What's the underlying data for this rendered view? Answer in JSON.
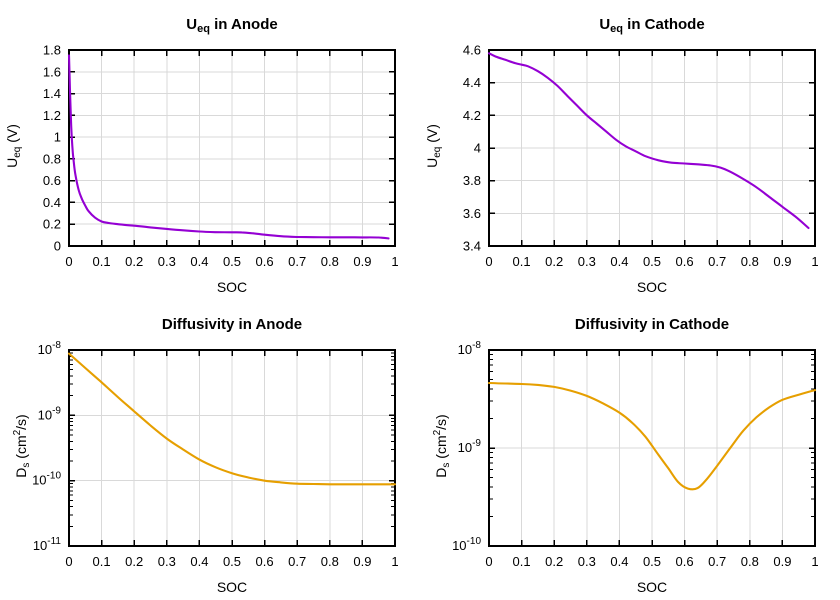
{
  "figure": {
    "background": "#ffffff",
    "grid_color": "#d9d9d9",
    "axis_color": "#000000",
    "rows": 2,
    "cols": 2
  },
  "chart_data": [
    {
      "name": "ueq-anode",
      "type": "line",
      "title": "U_eq in Anode",
      "title_segments": [
        [
          "U",
          ""
        ],
        [
          "eq",
          "sub"
        ],
        [
          " in Anode",
          ""
        ]
      ],
      "xlabel": "SOC",
      "ylabel": "U_eq (V)",
      "ylabel_segments": [
        [
          "U",
          ""
        ],
        [
          "eq",
          "sub"
        ],
        [
          " (V)",
          ""
        ]
      ],
      "line_color": "#9400d3",
      "y_scale": "linear",
      "xlim": [
        0,
        1
      ],
      "ylim": [
        0,
        1.8
      ],
      "x_ticks": [
        0,
        0.1,
        0.2,
        0.3,
        0.4,
        0.5,
        0.6,
        0.7,
        0.8,
        0.9,
        1
      ],
      "x_tick_labels": [
        "0",
        "0.1",
        "0.2",
        "0.3",
        "0.4",
        "0.5",
        "0.6",
        "0.7",
        "0.8",
        "0.9",
        "1"
      ],
      "y_ticks": [
        0,
        0.2,
        0.4,
        0.6,
        0.8,
        1,
        1.2,
        1.4,
        1.6,
        1.8
      ],
      "y_tick_labels": [
        "0",
        "0.2",
        "0.4",
        "0.6",
        "0.8",
        "1",
        "1.2",
        "1.4",
        "1.6",
        "1.8"
      ],
      "x": [
        0,
        0.003,
        0.006,
        0.01,
        0.015,
        0.02,
        0.03,
        0.04,
        0.05,
        0.06,
        0.08,
        0.1,
        0.12,
        0.15,
        0.18,
        0.2,
        0.25,
        0.3,
        0.35,
        0.4,
        0.45,
        0.5,
        0.53,
        0.56,
        0.6,
        0.65,
        0.7,
        0.75,
        0.8,
        0.85,
        0.9,
        0.95,
        0.98
      ],
      "y": [
        1.75,
        1.42,
        1.15,
        0.92,
        0.76,
        0.65,
        0.51,
        0.43,
        0.37,
        0.32,
        0.26,
        0.225,
        0.212,
        0.2,
        0.191,
        0.186,
        0.171,
        0.157,
        0.144,
        0.133,
        0.127,
        0.126,
        0.125,
        0.118,
        0.104,
        0.09,
        0.083,
        0.081,
        0.08,
        0.08,
        0.079,
        0.078,
        0.07
      ]
    },
    {
      "name": "ueq-cathode",
      "type": "line",
      "title": "U_eq in Cathode",
      "title_segments": [
        [
          "U",
          ""
        ],
        [
          "eq",
          "sub"
        ],
        [
          " in Cathode",
          ""
        ]
      ],
      "xlabel": "SOC",
      "ylabel": "U_eq (V)",
      "ylabel_segments": [
        [
          "U",
          ""
        ],
        [
          "eq",
          "sub"
        ],
        [
          " (V)",
          ""
        ]
      ],
      "line_color": "#9400d3",
      "y_scale": "linear",
      "xlim": [
        0,
        1
      ],
      "ylim": [
        3.4,
        4.6
      ],
      "x_ticks": [
        0,
        0.1,
        0.2,
        0.3,
        0.4,
        0.5,
        0.6,
        0.7,
        0.8,
        0.9,
        1
      ],
      "x_tick_labels": [
        "0",
        "0.1",
        "0.2",
        "0.3",
        "0.4",
        "0.5",
        "0.6",
        "0.7",
        "0.8",
        "0.9",
        "1"
      ],
      "y_ticks": [
        3.4,
        3.6,
        3.8,
        4,
        4.2,
        4.4,
        4.6
      ],
      "y_tick_labels": [
        "3.4",
        "3.6",
        "3.8",
        "4",
        "4.2",
        "4.4",
        "4.6"
      ],
      "x": [
        0,
        0.02,
        0.05,
        0.08,
        0.1,
        0.12,
        0.15,
        0.18,
        0.21,
        0.24,
        0.27,
        0.3,
        0.33,
        0.36,
        0.39,
        0.42,
        0.45,
        0.48,
        0.52,
        0.56,
        0.6,
        0.64,
        0.68,
        0.71,
        0.74,
        0.78,
        0.82,
        0.86,
        0.9,
        0.94,
        0.98
      ],
      "y": [
        4.58,
        4.56,
        4.54,
        4.52,
        4.51,
        4.5,
        4.47,
        4.43,
        4.38,
        4.32,
        4.26,
        4.2,
        4.15,
        4.1,
        4.05,
        4.01,
        3.98,
        3.95,
        3.925,
        3.91,
        3.905,
        3.9,
        3.893,
        3.88,
        3.855,
        3.81,
        3.76,
        3.7,
        3.64,
        3.58,
        3.51
      ]
    },
    {
      "name": "diffusivity-anode",
      "type": "line",
      "title": "Diffusivity in Anode",
      "title_segments": [
        [
          "Diffusivity in Anode",
          ""
        ]
      ],
      "xlabel": "SOC",
      "ylabel": "D_s (cm^2/s)",
      "ylabel_segments": [
        [
          "D",
          ""
        ],
        [
          "s",
          "sub"
        ],
        [
          " (cm",
          ""
        ],
        [
          "2",
          "sup"
        ],
        [
          "/s)",
          ""
        ]
      ],
      "line_color": "#e69f00",
      "y_scale": "log",
      "xlim": [
        0,
        1
      ],
      "ylim": [
        1e-11,
        1e-08
      ],
      "x_ticks": [
        0,
        0.1,
        0.2,
        0.3,
        0.4,
        0.5,
        0.6,
        0.7,
        0.8,
        0.9,
        1
      ],
      "x_tick_labels": [
        "0",
        "0.1",
        "0.2",
        "0.3",
        "0.4",
        "0.5",
        "0.6",
        "0.7",
        "0.8",
        "0.9",
        "1"
      ],
      "y_ticks": [
        1e-11,
        1e-10,
        1e-09,
        1e-08
      ],
      "y_tick_labels": [
        {
          "base": "10",
          "exp": "-11"
        },
        {
          "base": "10",
          "exp": "-10"
        },
        {
          "base": "10",
          "exp": "-9"
        },
        {
          "base": "10",
          "exp": "-8"
        }
      ],
      "x": [
        0,
        0.05,
        0.1,
        0.15,
        0.2,
        0.25,
        0.3,
        0.35,
        0.4,
        0.45,
        0.5,
        0.55,
        0.6,
        0.65,
        0.7,
        0.75,
        0.8,
        0.9,
        1.0
      ],
      "y": [
        8.8e-09,
        5.3e-09,
        3.2e-09,
        1.9e-09,
        1.15e-09,
        7e-10,
        4.4e-10,
        3e-10,
        2.1e-10,
        1.6e-10,
        1.3e-10,
        1.12e-10,
        1e-10,
        9.4e-11,
        9e-11,
        8.9e-11,
        8.8e-11,
        8.8e-11,
        8.8e-11
      ]
    },
    {
      "name": "diffusivity-cathode",
      "type": "line",
      "title": "Diffusivity in Cathode",
      "title_segments": [
        [
          "Diffusivity in Cathode",
          ""
        ]
      ],
      "xlabel": "SOC",
      "ylabel": "D_s (cm^2/s)",
      "ylabel_segments": [
        [
          "D",
          ""
        ],
        [
          "s",
          "sub"
        ],
        [
          " (cm",
          ""
        ],
        [
          "2",
          "sup"
        ],
        [
          "/s)",
          ""
        ]
      ],
      "line_color": "#e69f00",
      "y_scale": "log",
      "xlim": [
        0,
        1
      ],
      "ylim": [
        1e-10,
        1e-08
      ],
      "x_ticks": [
        0,
        0.1,
        0.2,
        0.3,
        0.4,
        0.5,
        0.6,
        0.7,
        0.8,
        0.9,
        1
      ],
      "x_tick_labels": [
        "0",
        "0.1",
        "0.2",
        "0.3",
        "0.4",
        "0.5",
        "0.6",
        "0.7",
        "0.8",
        "0.9",
        "1"
      ],
      "y_ticks": [
        1e-10,
        1e-09,
        1e-08
      ],
      "y_tick_labels": [
        {
          "base": "10",
          "exp": "-10"
        },
        {
          "base": "10",
          "exp": "-9"
        },
        {
          "base": "10",
          "exp": "-8"
        }
      ],
      "x": [
        0,
        0.05,
        0.1,
        0.15,
        0.2,
        0.25,
        0.3,
        0.35,
        0.4,
        0.44,
        0.48,
        0.52,
        0.55,
        0.58,
        0.61,
        0.64,
        0.67,
        0.7,
        0.74,
        0.78,
        0.82,
        0.86,
        0.9,
        0.95,
        1.0
      ],
      "y": [
        4.6e-09,
        4.55e-09,
        4.5e-09,
        4.4e-09,
        4.2e-09,
        3.85e-09,
        3.4e-09,
        2.85e-09,
        2.3e-09,
        1.8e-09,
        1.3e-09,
        8.5e-10,
        6.2e-10,
        4.5e-10,
        3.85e-10,
        3.9e-10,
        4.9e-10,
        6.6e-10,
        1e-09,
        1.5e-09,
        2.05e-09,
        2.6e-09,
        3.1e-09,
        3.5e-09,
        3.9e-09
      ]
    }
  ]
}
